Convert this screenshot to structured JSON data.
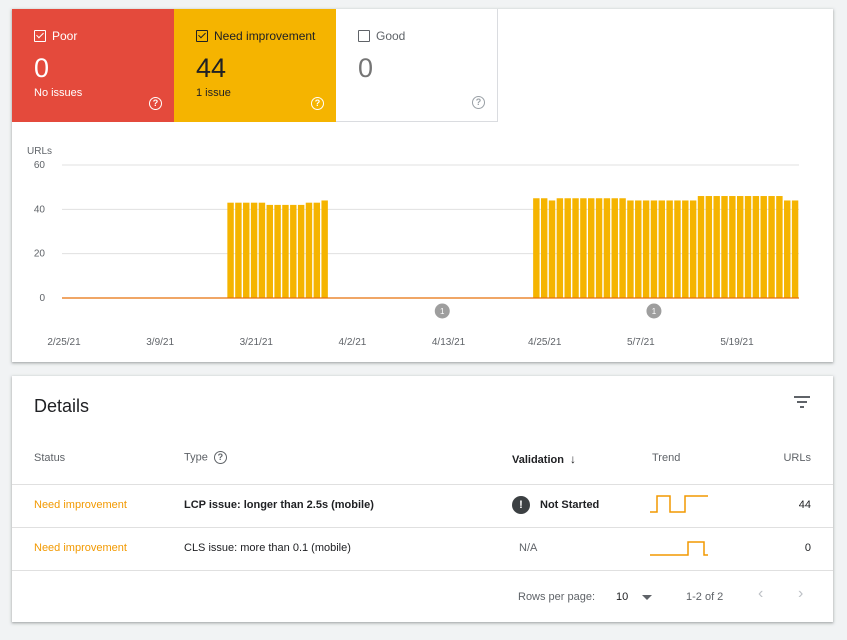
{
  "tiles": {
    "poor": {
      "label": "Poor",
      "count": "0",
      "sub": "No issues",
      "checked": true,
      "color": "#e44a3c"
    },
    "need": {
      "label": "Need improvement",
      "count": "44",
      "sub": "1 issue",
      "checked": true,
      "color": "#f5b400"
    },
    "good": {
      "label": "Good",
      "count": "0",
      "sub": "",
      "checked": false,
      "color": "#ffffff"
    }
  },
  "chart_data": {
    "type": "bar",
    "ylabel": "URLs",
    "ylim": [
      0,
      60
    ],
    "yticks": [
      "0",
      "20",
      "40",
      "60"
    ],
    "xticks": [
      "2/25/21",
      "3/9/21",
      "3/21/21",
      "4/2/21",
      "4/13/21",
      "4/25/21",
      "5/7/21",
      "5/19/21"
    ],
    "bar_color": "#f5b400",
    "line_color": "#e8710a",
    "annotation_marker": "1",
    "annotations_at_index": [
      48,
      75
    ],
    "values": [
      0,
      0,
      0,
      0,
      0,
      0,
      0,
      0,
      0,
      0,
      0,
      0,
      0,
      0,
      0,
      0,
      0,
      0,
      0,
      0,
      0,
      43,
      43,
      43,
      43,
      43,
      42,
      42,
      42,
      42,
      42,
      43,
      43,
      44,
      0,
      0,
      0,
      0,
      0,
      0,
      0,
      0,
      0,
      0,
      0,
      0,
      0,
      0,
      0,
      0,
      0,
      0,
      0,
      0,
      0,
      0,
      0,
      0,
      0,
      0,
      45,
      45,
      44,
      45,
      45,
      45,
      45,
      45,
      45,
      45,
      45,
      45,
      44,
      44,
      44,
      44,
      44,
      44,
      44,
      44,
      44,
      46,
      46,
      46,
      46,
      46,
      46,
      46,
      46,
      46,
      46,
      46,
      44,
      44
    ]
  },
  "details": {
    "title": "Details",
    "filter_icon": "filter-icon",
    "columns": {
      "status": "Status",
      "type": "Type",
      "validation": "Validation",
      "trend": "Trend",
      "urls": "URLs"
    },
    "rows": [
      {
        "status": "Need improvement",
        "type": "LCP issue: longer than 2.5s (mobile)",
        "validation": "Not Started",
        "urls": "44"
      },
      {
        "status": "Need improvement",
        "type": "CLS issue: more than 0.1 (mobile)",
        "validation": "N/A",
        "urls": "0"
      }
    ],
    "footer": {
      "rows_per_page_label": "Rows per page:",
      "rows_per_page": "10",
      "range": "1-2 of 2"
    }
  }
}
